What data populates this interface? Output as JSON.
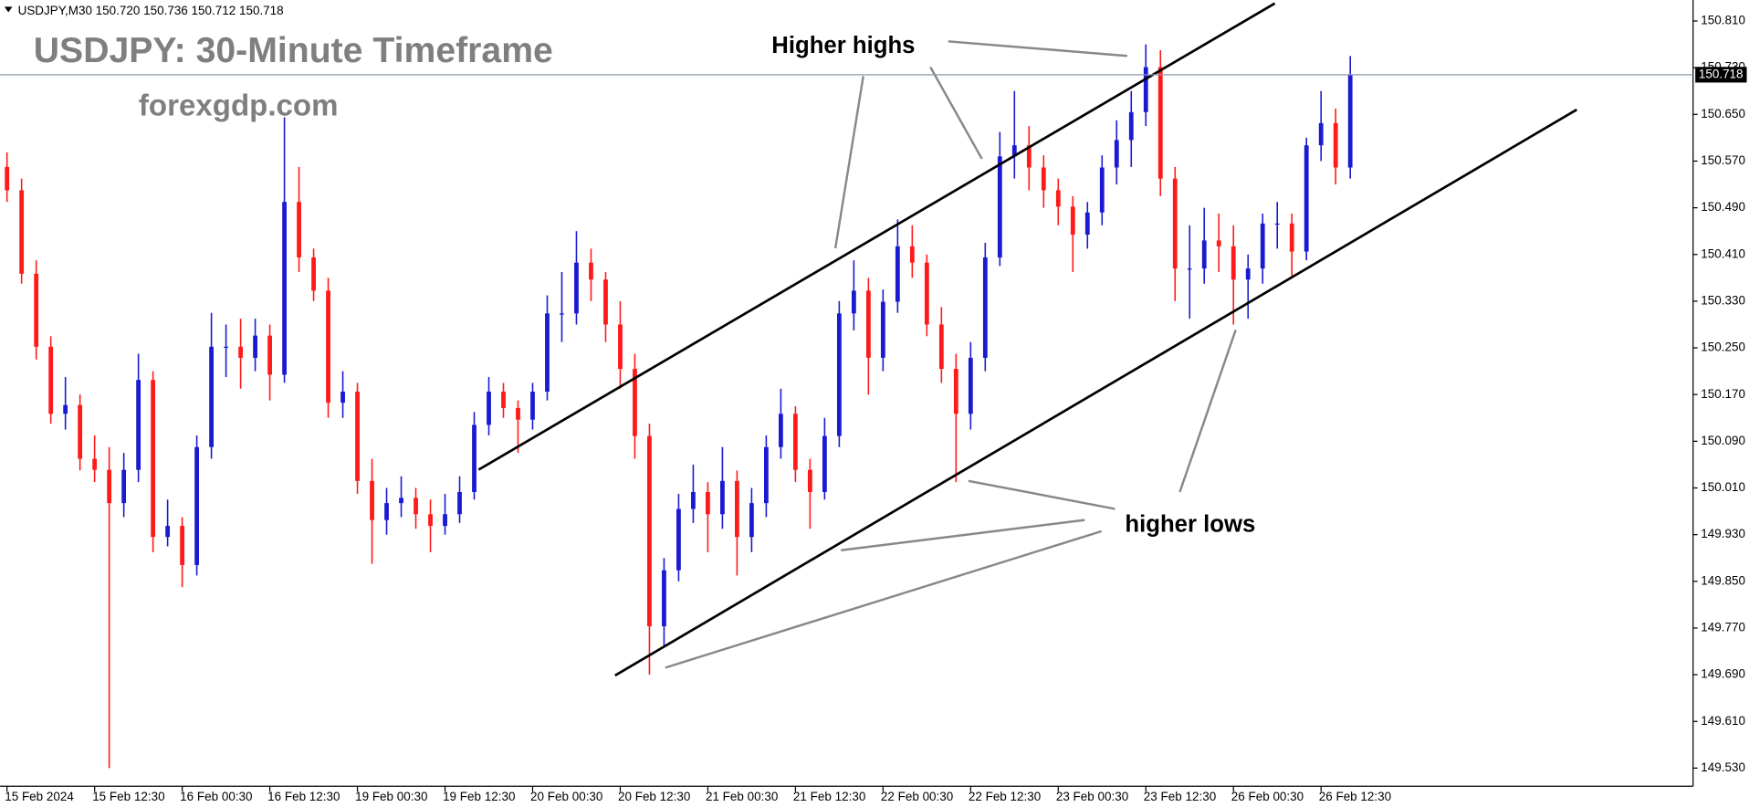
{
  "chart_data": {
    "type": "candlestick",
    "header_text": "USDJPY,M30  150.720 150.736 150.712 150.718",
    "title": "USDJPY: 30-Minute Timeframe",
    "subtitle": "forexgdp.com",
    "annotations": [
      "Higher highs",
      "higher lows"
    ],
    "up_color": "#1a1ad0",
    "down_color": "#ff1a1a",
    "last_price": 150.718,
    "xlim": [
      -1,
      461
    ],
    "ylim": [
      149.499,
      150.846
    ],
    "xticks": [
      {
        "value": 0,
        "label": "15 Feb 2024"
      },
      {
        "value": 24,
        "label": "15 Feb 12:30"
      },
      {
        "value": 48,
        "label": "16 Feb 00:30"
      },
      {
        "value": 72,
        "label": "16 Feb 12:30"
      },
      {
        "value": 96,
        "label": "19 Feb 00:30"
      },
      {
        "value": 120,
        "label": "19 Feb 12:30"
      },
      {
        "value": 144,
        "label": "20 Feb 00:30"
      },
      {
        "value": 168,
        "label": "20 Feb 12:30"
      },
      {
        "value": 192,
        "label": "21 Feb 00:30"
      },
      {
        "value": 216,
        "label": "21 Feb 12:30"
      },
      {
        "value": 240,
        "label": "22 Feb 00:30"
      },
      {
        "value": 264,
        "label": "22 Feb 12:30"
      },
      {
        "value": 288,
        "label": "23 Feb 00:30"
      },
      {
        "value": 312,
        "label": "23 Feb 12:30"
      },
      {
        "value": 336,
        "label": "26 Feb 00:30"
      },
      {
        "value": 360,
        "label": "26 Feb 12:30"
      }
    ],
    "yticks": [
      {
        "value": 150.81,
        "label": "150.810"
      },
      {
        "value": 150.73,
        "label": "150.730"
      },
      {
        "value": 150.65,
        "label": "150.650"
      },
      {
        "value": 150.57,
        "label": "150.570"
      },
      {
        "value": 150.49,
        "label": "150.490"
      },
      {
        "value": 150.41,
        "label": "150.410"
      },
      {
        "value": 150.33,
        "label": "150.330"
      },
      {
        "value": 150.25,
        "label": "150.250"
      },
      {
        "value": 150.17,
        "label": "150.170"
      },
      {
        "value": 150.09,
        "label": "150.090"
      },
      {
        "value": 150.01,
        "label": "150.010"
      },
      {
        "value": 149.93,
        "label": "149.930"
      },
      {
        "value": 149.85,
        "label": "149.850"
      },
      {
        "value": 149.77,
        "label": "149.770"
      },
      {
        "value": 149.69,
        "label": "149.690"
      },
      {
        "value": 149.61,
        "label": "149.610"
      },
      {
        "value": 149.53,
        "label": "149.530"
      }
    ],
    "x": [
      0,
      4,
      8,
      12,
      16,
      20,
      24,
      28,
      32,
      36,
      40,
      44,
      48,
      52,
      56,
      60,
      64,
      68,
      72,
      76,
      80,
      84,
      88,
      92,
      96,
      100,
      104,
      108,
      112,
      116,
      120,
      124,
      128,
      132,
      136,
      140,
      144,
      148,
      152,
      156,
      160,
      164,
      168,
      172,
      176,
      180,
      184,
      188,
      192,
      196,
      200,
      204,
      208,
      212,
      216,
      220,
      224,
      228,
      232,
      236,
      240,
      244,
      248,
      252,
      256,
      260,
      264,
      268,
      272,
      276,
      280,
      284,
      288,
      292,
      296,
      300,
      304,
      308,
      312,
      316,
      320,
      324,
      328,
      332,
      336,
      340,
      344,
      348,
      352,
      356,
      360,
      364,
      368
    ],
    "ohlc": [
      [
        150.56,
        150.585,
        150.5,
        150.52
      ],
      [
        150.52,
        150.54,
        150.36,
        150.377
      ],
      [
        150.377,
        150.4,
        150.23,
        150.252
      ],
      [
        150.252,
        150.27,
        150.12,
        150.137
      ],
      [
        150.137,
        150.2,
        150.11,
        150.152
      ],
      [
        150.152,
        150.17,
        150.04,
        150.06
      ],
      [
        150.06,
        150.1,
        150.02,
        150.041
      ],
      [
        150.041,
        150.08,
        149.53,
        149.984
      ],
      [
        149.984,
        150.07,
        149.96,
        150.041
      ],
      [
        150.041,
        150.24,
        150.02,
        150.195
      ],
      [
        150.195,
        150.21,
        149.9,
        149.926
      ],
      [
        149.926,
        149.99,
        149.91,
        149.945
      ],
      [
        149.945,
        149.96,
        149.84,
        149.878
      ],
      [
        149.878,
        150.1,
        149.86,
        150.08
      ],
      [
        150.08,
        150.31,
        150.06,
        150.252
      ],
      [
        150.252,
        150.29,
        150.2,
        150.252
      ],
      [
        150.252,
        150.3,
        150.18,
        150.233
      ],
      [
        150.233,
        150.3,
        150.21,
        150.271
      ],
      [
        150.271,
        150.29,
        150.16,
        150.204
      ],
      [
        150.204,
        150.645,
        150.19,
        150.5
      ],
      [
        150.5,
        150.56,
        150.38,
        150.405
      ],
      [
        150.405,
        150.42,
        150.33,
        150.348
      ],
      [
        150.348,
        150.37,
        150.13,
        150.156
      ],
      [
        150.156,
        150.21,
        150.13,
        150.175
      ],
      [
        150.175,
        150.19,
        150.0,
        150.022
      ],
      [
        150.022,
        150.06,
        149.88,
        149.955
      ],
      [
        149.955,
        150.01,
        149.93,
        149.984
      ],
      [
        149.984,
        150.03,
        149.96,
        149.993
      ],
      [
        149.993,
        150.01,
        149.94,
        149.965
      ],
      [
        149.965,
        149.99,
        149.9,
        149.945
      ],
      [
        149.945,
        150.0,
        149.93,
        149.965
      ],
      [
        149.965,
        150.03,
        149.95,
        150.003
      ],
      [
        150.003,
        150.14,
        149.99,
        150.118
      ],
      [
        150.118,
        150.2,
        150.1,
        150.175
      ],
      [
        150.175,
        150.19,
        150.13,
        150.147
      ],
      [
        150.147,
        150.16,
        150.07,
        150.127
      ],
      [
        150.127,
        150.19,
        150.11,
        150.175
      ],
      [
        150.175,
        150.34,
        150.16,
        150.309
      ],
      [
        150.309,
        150.38,
        150.26,
        150.309
      ],
      [
        150.309,
        150.45,
        150.29,
        150.396
      ],
      [
        150.396,
        150.42,
        150.33,
        150.367
      ],
      [
        150.367,
        150.38,
        150.26,
        150.29
      ],
      [
        150.29,
        150.33,
        150.18,
        150.214
      ],
      [
        150.214,
        150.24,
        150.06,
        150.099
      ],
      [
        150.099,
        150.12,
        149.69,
        149.773
      ],
      [
        149.773,
        149.89,
        149.74,
        149.869
      ],
      [
        149.869,
        150.0,
        149.85,
        149.974
      ],
      [
        149.974,
        150.05,
        149.95,
        150.003
      ],
      [
        150.003,
        150.02,
        149.9,
        149.965
      ],
      [
        149.965,
        150.08,
        149.94,
        150.022
      ],
      [
        150.022,
        150.04,
        149.86,
        149.926
      ],
      [
        149.926,
        150.01,
        149.9,
        149.984
      ],
      [
        149.984,
        150.1,
        149.96,
        150.08
      ],
      [
        150.08,
        150.18,
        150.06,
        150.137
      ],
      [
        150.137,
        150.15,
        150.02,
        150.041
      ],
      [
        150.041,
        150.06,
        149.94,
        150.003
      ],
      [
        150.003,
        150.13,
        149.99,
        150.099
      ],
      [
        150.099,
        150.33,
        150.08,
        150.309
      ],
      [
        150.309,
        150.4,
        150.28,
        150.348
      ],
      [
        150.348,
        150.37,
        150.17,
        150.233
      ],
      [
        150.233,
        150.35,
        150.21,
        150.329
      ],
      [
        150.329,
        150.47,
        150.31,
        150.424
      ],
      [
        150.424,
        150.46,
        150.37,
        150.396
      ],
      [
        150.396,
        150.41,
        150.27,
        150.29
      ],
      [
        150.29,
        150.32,
        150.19,
        150.214
      ],
      [
        150.214,
        150.24,
        150.02,
        150.137
      ],
      [
        150.137,
        150.26,
        150.11,
        150.233
      ],
      [
        150.233,
        150.43,
        150.21,
        150.405
      ],
      [
        150.405,
        150.62,
        150.39,
        150.578
      ],
      [
        150.578,
        150.69,
        150.54,
        150.597
      ],
      [
        150.597,
        150.63,
        150.52,
        150.559
      ],
      [
        150.559,
        150.58,
        150.49,
        150.52
      ],
      [
        150.52,
        150.54,
        150.46,
        150.492
      ],
      [
        150.492,
        150.51,
        150.38,
        150.444
      ],
      [
        150.444,
        150.5,
        150.42,
        150.482
      ],
      [
        150.482,
        150.58,
        150.46,
        150.559
      ],
      [
        150.559,
        150.64,
        150.53,
        150.606
      ],
      [
        150.606,
        150.69,
        150.56,
        150.654
      ],
      [
        150.654,
        150.77,
        150.63,
        150.731
      ],
      [
        150.731,
        150.76,
        150.51,
        150.54
      ],
      [
        150.54,
        150.56,
        150.33,
        150.386
      ],
      [
        150.386,
        150.46,
        150.3,
        150.386
      ],
      [
        150.386,
        150.49,
        150.36,
        150.434
      ],
      [
        150.434,
        150.48,
        150.38,
        150.424
      ],
      [
        150.424,
        150.46,
        150.29,
        150.367
      ],
      [
        150.367,
        150.41,
        150.3,
        150.386
      ],
      [
        150.386,
        150.48,
        150.36,
        150.463
      ],
      [
        150.463,
        150.5,
        150.42,
        150.463
      ],
      [
        150.463,
        150.48,
        150.37,
        150.415
      ],
      [
        150.415,
        150.61,
        150.4,
        150.597
      ],
      [
        150.597,
        150.69,
        150.57,
        150.635
      ],
      [
        150.635,
        150.66,
        150.53,
        150.559
      ],
      [
        150.559,
        150.75,
        150.54,
        150.718
      ]
    ]
  }
}
